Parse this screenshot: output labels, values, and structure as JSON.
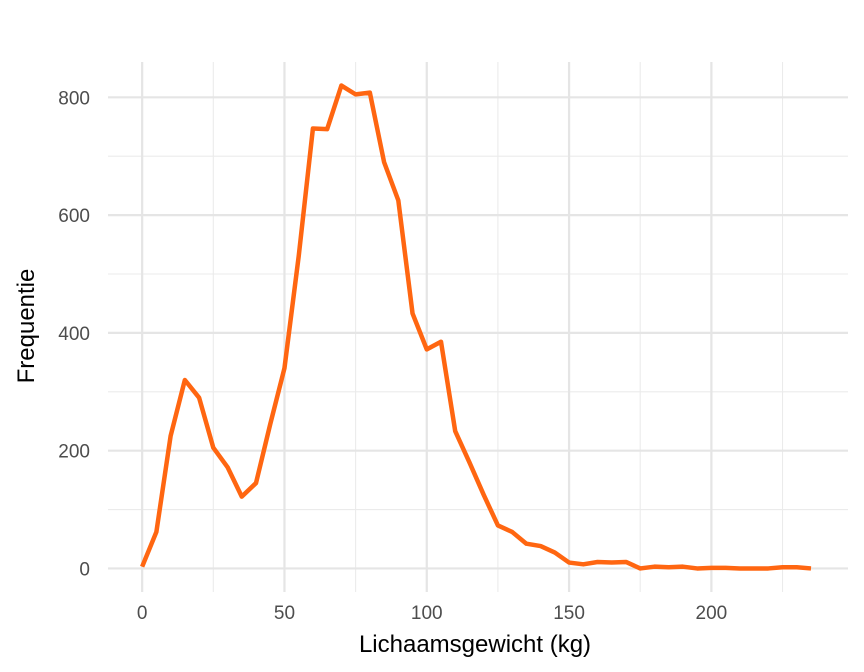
{
  "chart_data": {
    "type": "line",
    "title": "",
    "xlabel": "Lichaamsgewicht (kg)",
    "ylabel": "Frequentie",
    "xlim": [
      -12,
      248
    ],
    "ylim": [
      -40,
      860
    ],
    "x_ticks": [
      0,
      50,
      100,
      150,
      200
    ],
    "x_tick_labels": [
      "0",
      "50",
      "100",
      "150",
      "200"
    ],
    "y_ticks": [
      0,
      200,
      400,
      600,
      800
    ],
    "y_tick_labels": [
      "0",
      "200",
      "400",
      "600",
      "800"
    ],
    "x_minor_ticks": [
      25,
      75,
      125,
      175,
      225
    ],
    "y_minor_ticks": [
      100,
      300,
      500,
      700
    ],
    "grid": true,
    "line_color": "#FF6611",
    "series": [
      {
        "x": [
          0,
          5,
          10,
          15,
          20,
          25,
          30,
          35,
          40,
          45,
          50,
          55,
          60,
          65,
          70,
          75,
          80,
          85,
          90,
          95,
          100,
          105,
          110,
          115,
          120,
          125,
          130,
          135,
          140,
          145,
          150,
          155,
          160,
          165,
          170,
          175,
          180,
          185,
          190,
          195,
          200,
          205,
          210,
          215,
          220,
          225,
          230,
          235
        ],
        "values": [
          3,
          62,
          225,
          320,
          290,
          205,
          172,
          122,
          145,
          245,
          340,
          530,
          747,
          746,
          820,
          805,
          808,
          690,
          625,
          433,
          372,
          385,
          233,
          180,
          125,
          73,
          62,
          42,
          38,
          27,
          10,
          7,
          11,
          10,
          11,
          0,
          3,
          2,
          3,
          0,
          1,
          1,
          0,
          0,
          0,
          2,
          2,
          0
        ]
      }
    ]
  }
}
